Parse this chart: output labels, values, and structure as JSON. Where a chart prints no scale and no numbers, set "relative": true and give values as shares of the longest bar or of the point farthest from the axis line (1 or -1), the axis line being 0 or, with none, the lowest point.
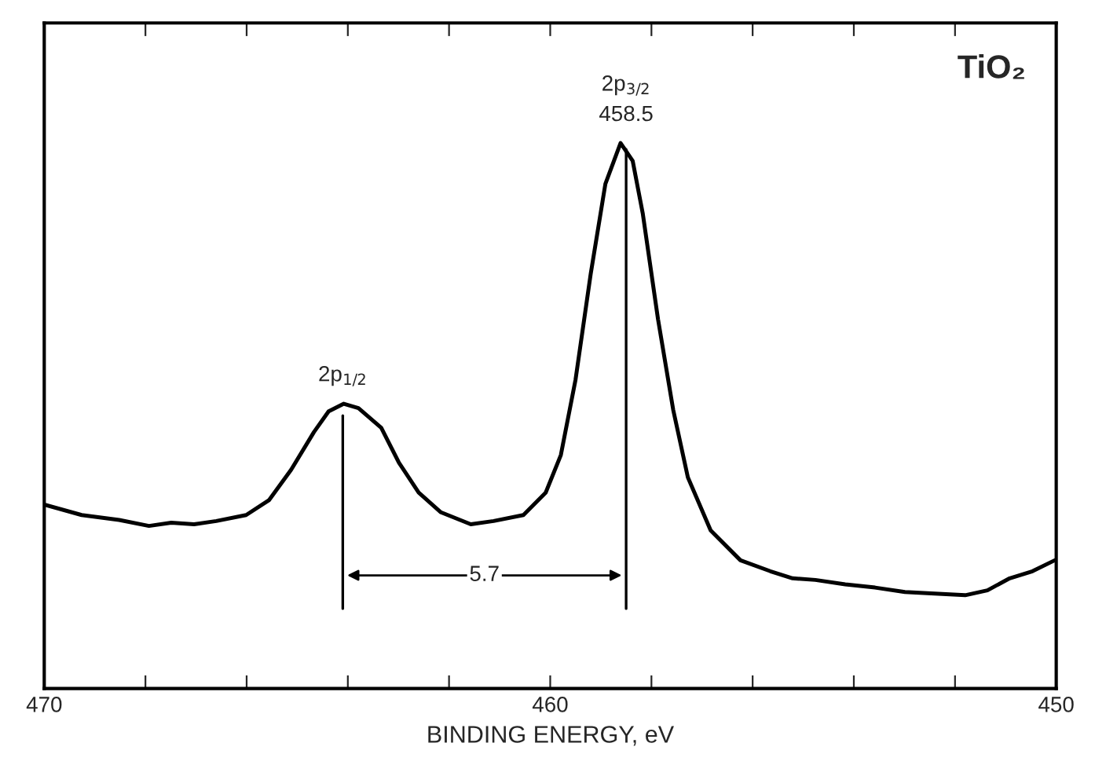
{
  "chart_data": {
    "type": "line",
    "relative": true,
    "xlabel": "BINDING ENERGY, eV",
    "xlim": [
      470,
      450
    ],
    "xticks": [
      470,
      {
        "value": 468,
        "label": null
      },
      {
        "value": 466,
        "label": null
      },
      {
        "value": 464,
        "label": null
      },
      {
        "value": 462,
        "label": null
      },
      460,
      {
        "value": 458,
        "label": null
      },
      {
        "value": 456,
        "label": null
      },
      {
        "value": 454,
        "label": null
      },
      {
        "value": 452,
        "label": null
      },
      450
    ],
    "tick_labels": "x",
    "grid": false,
    "legend": false,
    "series": [
      {
        "color": "#000000",
        "x": [
          470.0,
          469.26,
          468.52,
          467.93,
          467.49,
          467.04,
          466.6,
          466.01,
          465.56,
          465.12,
          464.67,
          464.38,
          464.08,
          463.79,
          463.34,
          462.99,
          462.6,
          462.16,
          461.57,
          461.12,
          460.53,
          460.09,
          459.79,
          459.5,
          459.2,
          458.91,
          458.61,
          458.37,
          458.17,
          457.87,
          457.57,
          457.28,
          456.83,
          456.24,
          455.65,
          455.21,
          454.76,
          454.17,
          453.58,
          452.99,
          452.4,
          451.8,
          451.36,
          450.92,
          450.47,
          450.03
        ],
        "values": [
          0.337,
          0.318,
          0.309,
          0.298,
          0.304,
          0.301,
          0.307,
          0.318,
          0.345,
          0.401,
          0.47,
          0.508,
          0.522,
          0.514,
          0.478,
          0.414,
          0.359,
          0.323,
          0.301,
          0.307,
          0.318,
          0.359,
          0.428,
          0.566,
          0.76,
          0.925,
          1.0,
          0.967,
          0.87,
          0.677,
          0.511,
          0.387,
          0.29,
          0.235,
          0.215,
          0.202,
          0.199,
          0.191,
          0.185,
          0.177,
          0.174,
          0.171,
          0.18,
          0.202,
          0.215,
          0.235
        ]
      }
    ],
    "ref_lines": [
      {
        "axis": "x",
        "value": 464.1
      },
      {
        "axis": "x",
        "value": 458.5
      }
    ],
    "annotations": [
      {
        "text": "2p$_{1/2}$",
        "x": 464.1,
        "y": 0.522
      },
      {
        "text": "2p$_{3/2}$\n458.5",
        "x": 458.5,
        "y": 1.0
      },
      {
        "text": "5.7"
      },
      "TiO₂"
    ]
  }
}
